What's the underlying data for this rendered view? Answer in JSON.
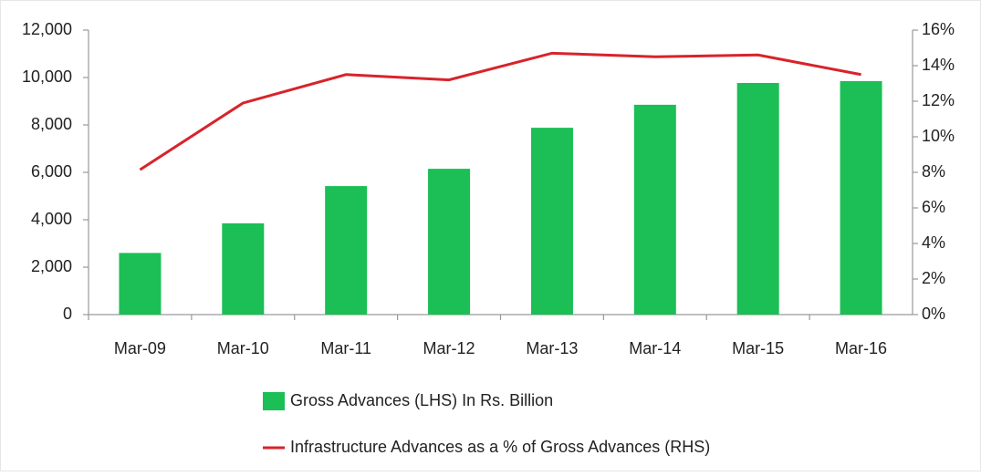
{
  "chart_data": {
    "type": "bar",
    "categories": [
      "Mar-09",
      "Mar-10",
      "Mar-11",
      "Mar-12",
      "Mar-13",
      "Mar-14",
      "Mar-15",
      "Mar-16"
    ],
    "series": [
      {
        "name": "Gross Advances (LHS) In Rs. Billion",
        "color": "#1bbf55",
        "type": "bar",
        "values": [
          2600,
          3850,
          5420,
          6150,
          7880,
          8850,
          9770,
          9850
        ]
      },
      {
        "name": "Infrastructure Advances as a % of Gross Advances (RHS)",
        "color": "#d8232a",
        "type": "line",
        "axis": "y2",
        "values": [
          8.15,
          11.9,
          13.5,
          13.2,
          14.7,
          14.5,
          14.6,
          13.5
        ]
      }
    ],
    "ylim": [
      0,
      12000
    ],
    "yticks": [
      0,
      {
        "value": 2000,
        "label": "2,000"
      },
      {
        "value": 4000,
        "label": "4,000"
      },
      {
        "value": 6000,
        "label": "6,000"
      },
      {
        "value": 8000,
        "label": "8,000"
      },
      {
        "value": 10000,
        "label": "10,000"
      },
      {
        "value": 12000,
        "label": "12,000"
      }
    ],
    "y2lim": [
      0,
      16
    ],
    "y2ticks": [
      {
        "value": 0,
        "label": "0%"
      },
      {
        "value": 2,
        "label": "2%"
      },
      {
        "value": 4,
        "label": "4%"
      },
      {
        "value": 6,
        "label": "6%"
      },
      {
        "value": 8,
        "label": "8%"
      },
      {
        "value": 10,
        "label": "10%"
      },
      {
        "value": 12,
        "label": "12%"
      },
      {
        "value": 14,
        "label": "14%"
      },
      {
        "value": 16,
        "label": "16%"
      }
    ],
    "grid": false,
    "legend": "bottom"
  }
}
